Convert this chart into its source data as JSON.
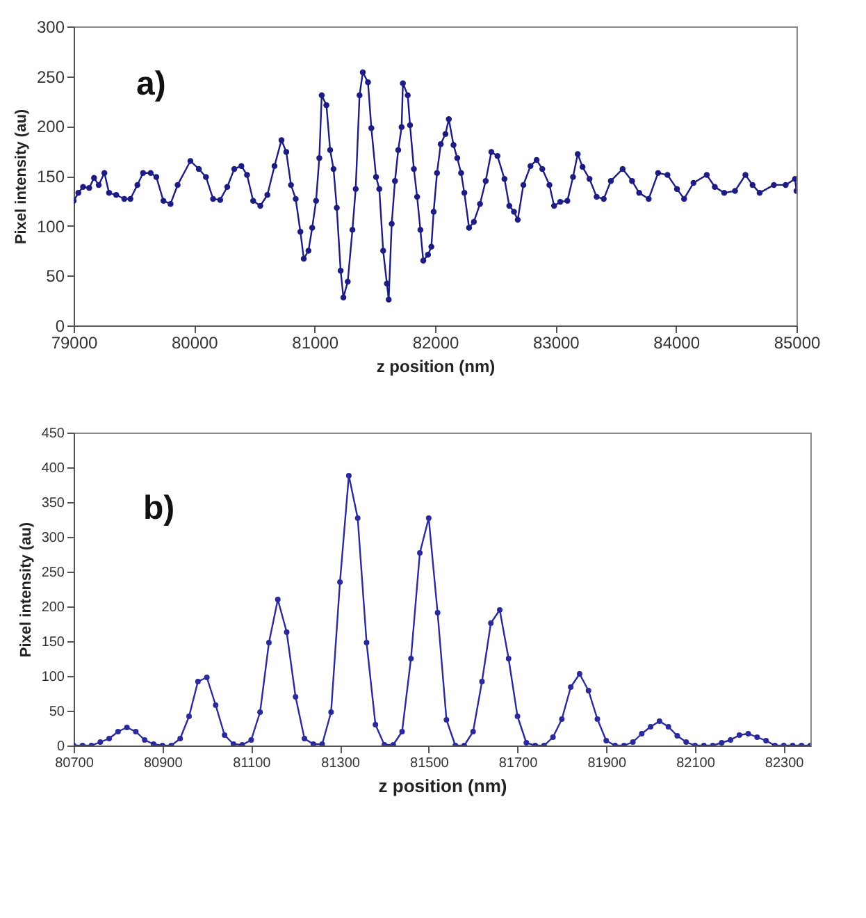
{
  "chart_data": [
    {
      "type": "line",
      "xlabel": "z position (nm)",
      "ylabel": "Pixel intensity (au)",
      "annotations": [
        "a)"
      ],
      "marker": "circle",
      "line_style": "solid",
      "xlim": [
        79000,
        85000
      ],
      "xticks": [
        79000,
        80000,
        81000,
        82000,
        83000,
        84000,
        85000
      ],
      "ylim": [
        0,
        300
      ],
      "yticks": [
        0,
        50,
        100,
        150,
        200,
        250,
        300
      ],
      "x": [
        79000,
        79039,
        79078,
        79129,
        79169,
        79208,
        79255,
        79294,
        79353,
        79420,
        79471,
        79529,
        79576,
        79639,
        79686,
        79745,
        79804,
        79863,
        79969,
        80039,
        80098,
        80157,
        80216,
        80275,
        80333,
        80392,
        80439,
        80490,
        80549,
        80608,
        80667,
        80725,
        80765,
        80804,
        80843,
        80882,
        80910,
        80949,
        80980,
        81012,
        81039,
        81059,
        81098,
        81129,
        81157,
        81184,
        81216,
        81239,
        81275,
        81314,
        81341,
        81373,
        81400,
        81443,
        81471,
        81510,
        81537,
        81569,
        81600,
        81615,
        81640,
        81667,
        81694,
        81722,
        81733,
        81773,
        81792,
        81824,
        81851,
        81878,
        81902,
        81941,
        81969,
        81988,
        82016,
        82047,
        82086,
        82114,
        82153,
        82184,
        82216,
        82243,
        82282,
        82322,
        82373,
        82420,
        82467,
        82518,
        82576,
        82616,
        82655,
        82686,
        82733,
        82792,
        82843,
        82890,
        82949,
        82988,
        83039,
        83098,
        83145,
        83184,
        83224,
        83282,
        83341,
        83400,
        83459,
        83557,
        83635,
        83694,
        83773,
        83851,
        83929,
        84008,
        84067,
        84145,
        84255,
        84322,
        84400,
        84490,
        84576,
        84635,
        84694,
        84812,
        84910,
        84988,
        85000
      ],
      "series": [
        {
          "color": "#1c1c82",
          "values": [
            125,
            133,
            139,
            138,
            148,
            141,
            153,
            133,
            131,
            127,
            127,
            141,
            153,
            153,
            149,
            125,
            122,
            141,
            165,
            157,
            149,
            127,
            126,
            139,
            157,
            160,
            151,
            125,
            120,
            131,
            160,
            186,
            174,
            141,
            127,
            94,
            67,
            75,
            98,
            125,
            168,
            231,
            221,
            176,
            157,
            118,
            55,
            28,
            44,
            96,
            137,
            231,
            254,
            244,
            198,
            149,
            137,
            75,
            42,
            26,
            102,
            145,
            176,
            199,
            243,
            231,
            201,
            157,
            129,
            96,
            65,
            71,
            79,
            114,
            153,
            182,
            192,
            207,
            181,
            168,
            153,
            133,
            98,
            104,
            122,
            145,
            174,
            170,
            147,
            120,
            114,
            106,
            141,
            160,
            166,
            157,
            141,
            120,
            124,
            125,
            149,
            172,
            159,
            147,
            129,
            127,
            145,
            157,
            145,
            133,
            127,
            153,
            151,
            137,
            127,
            143,
            151,
            139,
            133,
            135,
            151,
            141,
            133,
            141,
            141,
            147,
            135
          ]
        }
      ]
    },
    {
      "type": "line",
      "xlabel": "z position (nm)",
      "ylabel": "Pixel intensity (au)",
      "annotations": [
        "b)"
      ],
      "marker": "circle",
      "line_style": "solid",
      "xlim": [
        80700,
        82360
      ],
      "xticks": [
        80700,
        80900,
        81100,
        81300,
        81500,
        81700,
        81900,
        82100,
        82300
      ],
      "ylim": [
        0,
        450
      ],
      "yticks": [
        0,
        50,
        100,
        150,
        200,
        250,
        300,
        350,
        400,
        450
      ],
      "x": [
        80700,
        80720,
        80740,
        80760,
        80780,
        80800,
        80820,
        80840,
        80860,
        80880,
        80900,
        80920,
        80940,
        80960,
        80980,
        81000,
        81020,
        81040,
        81060,
        81080,
        81100,
        81120,
        81140,
        81160,
        81180,
        81200,
        81220,
        81240,
        81260,
        81280,
        81300,
        81320,
        81340,
        81360,
        81380,
        81400,
        81420,
        81440,
        81460,
        81480,
        81500,
        81520,
        81540,
        81560,
        81580,
        81600,
        81620,
        81640,
        81660,
        81680,
        81700,
        81720,
        81740,
        81760,
        81780,
        81800,
        81820,
        81840,
        81860,
        81880,
        81900,
        81920,
        81940,
        81960,
        81980,
        82000,
        82020,
        82040,
        82060,
        82080,
        82100,
        82120,
        82140,
        82160,
        82180,
        82200,
        82220,
        82240,
        82260,
        82280,
        82300,
        82320,
        82340,
        82360
      ],
      "series": [
        {
          "color": "#2a2a9c",
          "values": [
            0,
            0,
            0,
            5,
            10,
            20,
            26,
            20,
            8,
            2,
            0,
            0,
            10,
            42,
            92,
            98,
            58,
            15,
            2,
            1,
            8,
            48,
            148,
            210,
            163,
            70,
            10,
            2,
            2,
            48,
            235,
            388,
            327,
            148,
            30,
            1,
            1,
            20,
            125,
            277,
            327,
            191,
            37,
            0,
            0,
            20,
            92,
            176,
            195,
            125,
            42,
            4,
            0,
            0,
            12,
            38,
            84,
            103,
            79,
            38,
            7,
            0,
            0,
            5,
            17,
            27,
            35,
            27,
            14,
            5,
            0,
            0,
            0,
            4,
            8,
            15,
            17,
            12,
            7,
            0,
            0,
            0,
            0,
            0
          ]
        }
      ]
    }
  ]
}
